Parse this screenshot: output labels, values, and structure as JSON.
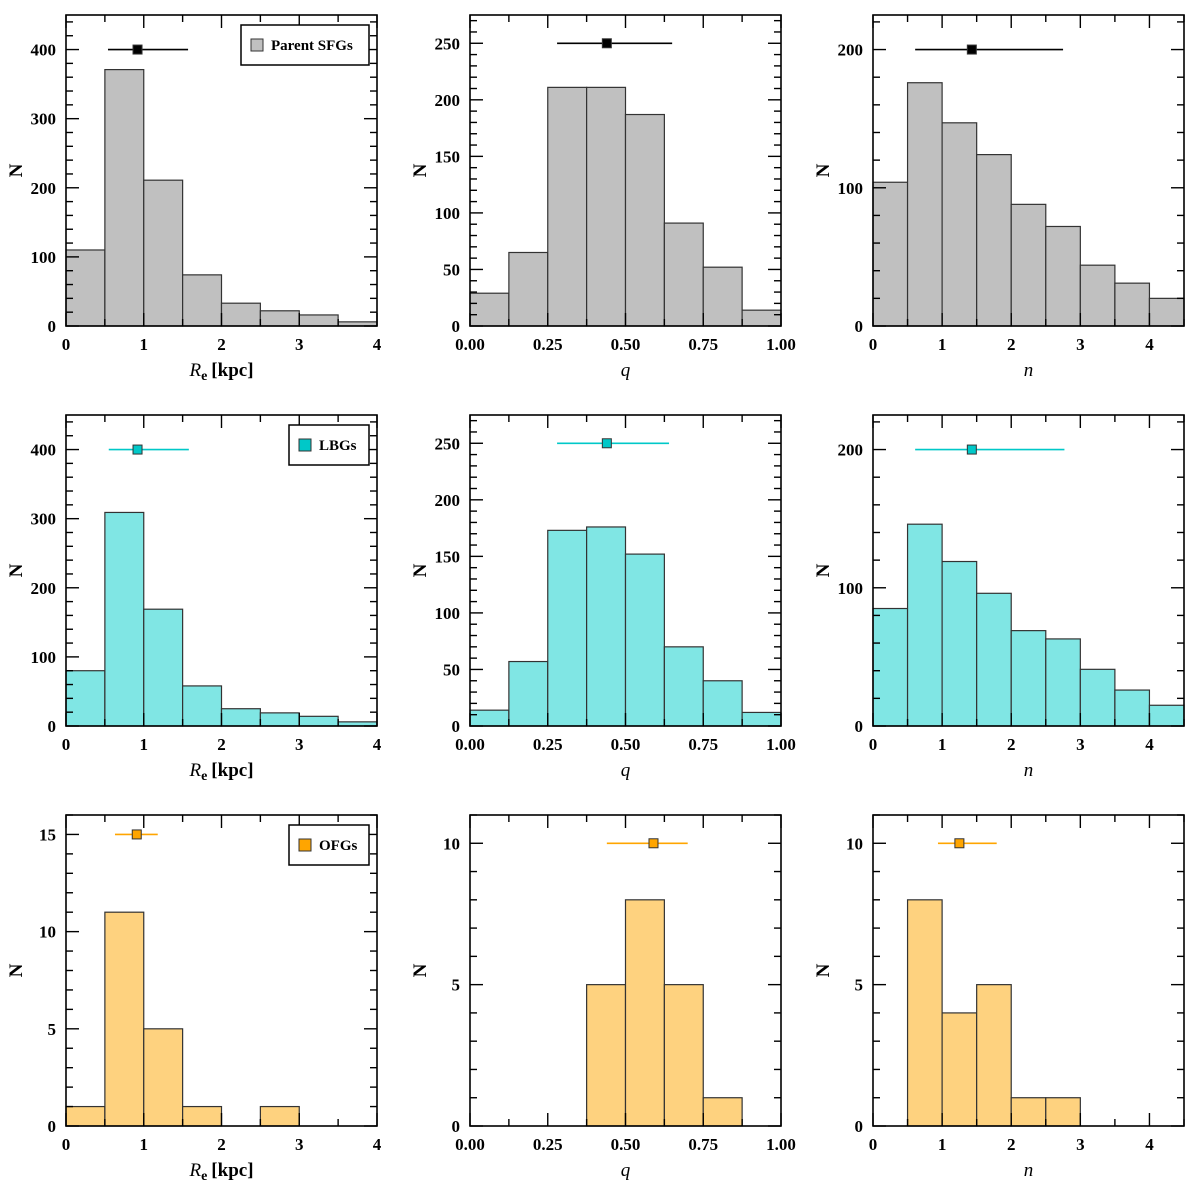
{
  "chart_data": [
    {
      "type": "bar",
      "panel": "parent-re",
      "xlabel_main": "R",
      "xlabel_sub": "e",
      "xlabel_unit": "[kpc]",
      "ylabel": "N",
      "xlim": [
        0,
        4
      ],
      "ylim": [
        0,
        450
      ],
      "bin_edges": [
        0,
        0.5,
        1,
        1.5,
        2,
        2.5,
        3,
        3.5,
        4
      ],
      "values": [
        110,
        371,
        211,
        74,
        33,
        22,
        16,
        6
      ],
      "x_ticks": [
        0,
        1,
        2,
        3,
        4
      ],
      "x_tick_labels": [
        "0",
        "1",
        "2",
        "3",
        "4"
      ],
      "x_minor": 0.5,
      "y_ticks": [
        0,
        100,
        200,
        300,
        400
      ],
      "y_tick_labels": [
        "0",
        "100",
        "200",
        "300",
        "400"
      ],
      "y_minor": 20,
      "median": {
        "x": 0.92,
        "y": 400,
        "lo": 0.54,
        "hi": 1.57
      },
      "legend": {
        "label": "Parent SFGs",
        "position": "top-right"
      },
      "series": "parent"
    },
    {
      "type": "bar",
      "panel": "parent-q",
      "xlabel_italic": "q",
      "ylabel": "N",
      "xlim": [
        0,
        1
      ],
      "ylim": [
        0,
        275
      ],
      "bin_edges": [
        0,
        0.125,
        0.25,
        0.375,
        0.5,
        0.625,
        0.75,
        0.875,
        1.0
      ],
      "values": [
        29,
        65,
        211,
        211,
        187,
        91,
        52,
        14
      ],
      "x_ticks": [
        0,
        0.25,
        0.5,
        0.75,
        1.0
      ],
      "x_tick_labels": [
        "0.00",
        "0.25",
        "0.50",
        "0.75",
        "1.00"
      ],
      "x_minor": 0.125,
      "y_ticks": [
        0,
        50,
        100,
        150,
        200,
        250
      ],
      "y_tick_labels": [
        "0",
        "50",
        "100",
        "150",
        "200",
        "250"
      ],
      "y_minor": 10,
      "median": {
        "x": 0.44,
        "y": 250,
        "lo": 0.28,
        "hi": 0.65
      },
      "series": "parent"
    },
    {
      "type": "bar",
      "panel": "parent-n",
      "xlabel_italic": "n",
      "ylabel": "N",
      "xlim": [
        0,
        4.5
      ],
      "ylim": [
        0,
        225
      ],
      "bin_edges": [
        0,
        0.5,
        1,
        1.5,
        2,
        2.5,
        3,
        3.5,
        4,
        4.5
      ],
      "values": [
        104,
        176,
        147,
        124,
        88,
        72,
        44,
        31,
        20
      ],
      "x_ticks": [
        0,
        1,
        2,
        3,
        4
      ],
      "x_tick_labels": [
        "0",
        "1",
        "2",
        "3",
        "4"
      ],
      "x_minor": 0.5,
      "y_ticks": [
        0,
        100,
        200
      ],
      "y_tick_labels": [
        "0",
        "100",
        "200"
      ],
      "y_minor": 20,
      "median": {
        "x": 1.43,
        "y": 200,
        "lo": 0.61,
        "hi": 2.75
      },
      "series": "parent"
    },
    {
      "type": "bar",
      "panel": "lbg-re",
      "xlabel_main": "R",
      "xlabel_sub": "e",
      "xlabel_unit": "[kpc]",
      "ylabel": "N",
      "xlim": [
        0,
        4
      ],
      "ylim": [
        0,
        450
      ],
      "bin_edges": [
        0,
        0.5,
        1,
        1.5,
        2,
        2.5,
        3,
        3.5,
        4
      ],
      "values": [
        80,
        309,
        169,
        58,
        25,
        19,
        14,
        6
      ],
      "x_ticks": [
        0,
        1,
        2,
        3,
        4
      ],
      "x_tick_labels": [
        "0",
        "1",
        "2",
        "3",
        "4"
      ],
      "x_minor": 0.5,
      "y_ticks": [
        0,
        100,
        200,
        300,
        400
      ],
      "y_tick_labels": [
        "0",
        "100",
        "200",
        "300",
        "400"
      ],
      "y_minor": 20,
      "median": {
        "x": 0.92,
        "y": 400,
        "lo": 0.55,
        "hi": 1.58
      },
      "legend": {
        "label": "LBGs",
        "position": "top-right"
      },
      "series": "lbg"
    },
    {
      "type": "bar",
      "panel": "lbg-q",
      "xlabel_italic": "q",
      "ylabel": "N",
      "xlim": [
        0,
        1
      ],
      "ylim": [
        0,
        275
      ],
      "bin_edges": [
        0,
        0.125,
        0.25,
        0.375,
        0.5,
        0.625,
        0.75,
        0.875,
        1.0
      ],
      "values": [
        14,
        57,
        173,
        176,
        152,
        70,
        40,
        12
      ],
      "x_ticks": [
        0,
        0.25,
        0.5,
        0.75,
        1.0
      ],
      "x_tick_labels": [
        "0.00",
        "0.25",
        "0.50",
        "0.75",
        "1.00"
      ],
      "x_minor": 0.125,
      "y_ticks": [
        0,
        50,
        100,
        150,
        200,
        250
      ],
      "y_tick_labels": [
        "0",
        "50",
        "100",
        "150",
        "200",
        "250"
      ],
      "y_minor": 10,
      "median": {
        "x": 0.44,
        "y": 250,
        "lo": 0.28,
        "hi": 0.64
      },
      "series": "lbg"
    },
    {
      "type": "bar",
      "panel": "lbg-n",
      "xlabel_italic": "n",
      "ylabel": "N",
      "xlim": [
        0,
        4.5
      ],
      "ylim": [
        0,
        225
      ],
      "bin_edges": [
        0,
        0.5,
        1,
        1.5,
        2,
        2.5,
        3,
        3.5,
        4,
        4.5
      ],
      "values": [
        85,
        146,
        119,
        96,
        69,
        63,
        41,
        26,
        15
      ],
      "x_ticks": [
        0,
        1,
        2,
        3,
        4
      ],
      "x_tick_labels": [
        "0",
        "1",
        "2",
        "3",
        "4"
      ],
      "x_minor": 0.5,
      "y_ticks": [
        0,
        100,
        200
      ],
      "y_tick_labels": [
        "0",
        "100",
        "200"
      ],
      "y_minor": 20,
      "median": {
        "x": 1.43,
        "y": 200,
        "lo": 0.61,
        "hi": 2.77
      },
      "series": "lbg"
    },
    {
      "type": "bar",
      "panel": "ofg-re",
      "xlabel_main": "R",
      "xlabel_sub": "e",
      "xlabel_unit": "[kpc]",
      "ylabel": "N",
      "xlim": [
        0,
        4
      ],
      "ylim": [
        0,
        16
      ],
      "bin_edges": [
        0,
        0.5,
        1,
        1.5,
        2,
        2.5,
        3,
        3.5,
        4
      ],
      "values": [
        1,
        11,
        5,
        1,
        0,
        1,
        0,
        0
      ],
      "x_ticks": [
        0,
        1,
        2,
        3,
        4
      ],
      "x_tick_labels": [
        "0",
        "1",
        "2",
        "3",
        "4"
      ],
      "x_minor": 0.5,
      "y_ticks": [
        0,
        5,
        10,
        15
      ],
      "y_tick_labels": [
        "0",
        "5",
        "10",
        "15"
      ],
      "y_minor": 1,
      "median": {
        "x": 0.91,
        "y": 15,
        "lo": 0.63,
        "hi": 1.18
      },
      "legend": {
        "label": "OFGs",
        "position": "top-right"
      },
      "series": "ofg"
    },
    {
      "type": "bar",
      "panel": "ofg-q",
      "xlabel_italic": "q",
      "ylabel": "N",
      "xlim": [
        0,
        1
      ],
      "ylim": [
        0,
        11
      ],
      "bin_edges": [
        0,
        0.125,
        0.25,
        0.375,
        0.5,
        0.625,
        0.75,
        0.875,
        1.0
      ],
      "values": [
        0,
        0,
        0,
        5,
        8,
        5,
        1,
        0
      ],
      "x_ticks": [
        0,
        0.25,
        0.5,
        0.75,
        1.0
      ],
      "x_tick_labels": [
        "0.00",
        "0.25",
        "0.50",
        "0.75",
        "1.00"
      ],
      "x_minor": 0.125,
      "y_ticks": [
        0,
        5,
        10
      ],
      "y_tick_labels": [
        "0",
        "5",
        "10"
      ],
      "y_minor": 1,
      "median": {
        "x": 0.59,
        "y": 10,
        "lo": 0.44,
        "hi": 0.7
      },
      "series": "ofg"
    },
    {
      "type": "bar",
      "panel": "ofg-n",
      "xlabel_italic": "n",
      "ylabel": "N",
      "xlim": [
        0,
        4.5
      ],
      "ylim": [
        0,
        11
      ],
      "bin_edges": [
        0,
        0.5,
        1,
        1.5,
        2,
        2.5,
        3,
        3.5,
        4,
        4.5
      ],
      "values": [
        0,
        8,
        4,
        5,
        1,
        1,
        0,
        0,
        0
      ],
      "x_ticks": [
        0,
        1,
        2,
        3,
        4
      ],
      "x_tick_labels": [
        "0",
        "1",
        "2",
        "3",
        "4"
      ],
      "x_minor": 0.5,
      "y_ticks": [
        0,
        5,
        10
      ],
      "y_tick_labels": [
        "0",
        "5",
        "10"
      ],
      "y_minor": 1,
      "median": {
        "x": 1.25,
        "y": 10,
        "lo": 0.94,
        "hi": 1.79
      },
      "series": "ofg"
    }
  ],
  "series_styles": {
    "parent": {
      "fill": "#c0c0c0",
      "marker": "#000000",
      "line": "#000000"
    },
    "lbg": {
      "fill": "#80e6e4",
      "marker": "#00c8c8",
      "line": "#00c8c8"
    },
    "ofg": {
      "fill": "#fed27f",
      "marker": "#ffa500",
      "line": "#ffa500"
    }
  }
}
